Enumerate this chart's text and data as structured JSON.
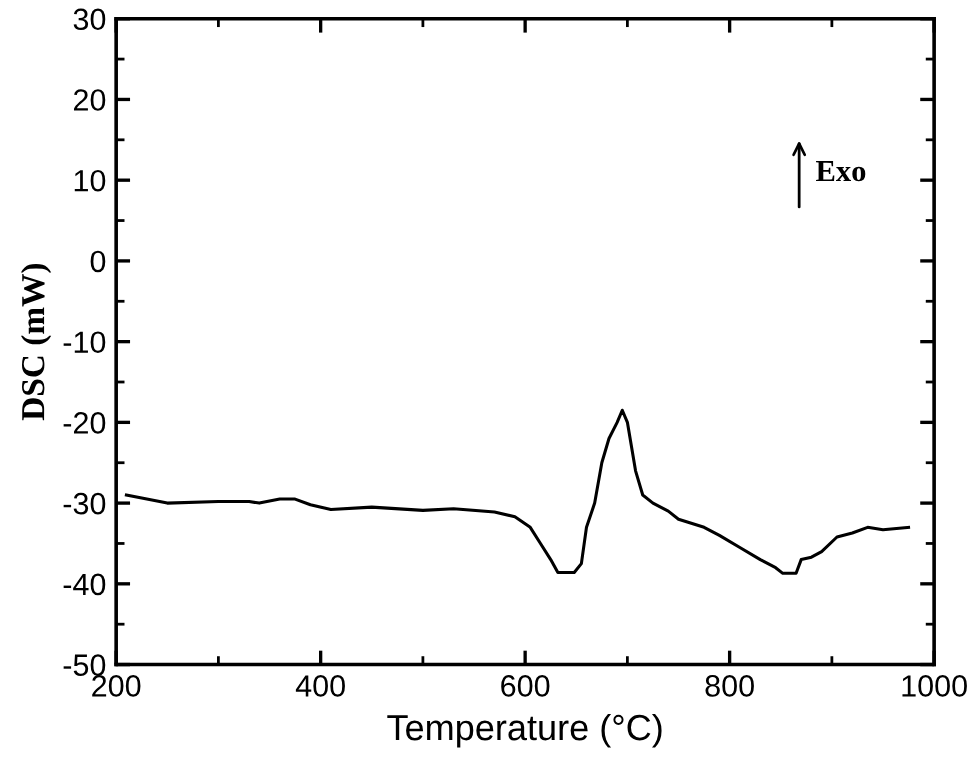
{
  "chart_data": {
    "type": "line",
    "xlabel": "Temperature (°C)",
    "ylabel": "DSC (mW)",
    "x": [
      210,
      230,
      250,
      300,
      330,
      340,
      360,
      375,
      390,
      410,
      450,
      500,
      530,
      570,
      590,
      605,
      615,
      625,
      632,
      648,
      655,
      660,
      668,
      675,
      682,
      690,
      695,
      700,
      708,
      715,
      725,
      740,
      750,
      775,
      790,
      810,
      830,
      845,
      852,
      865,
      870,
      880,
      890,
      905,
      920,
      935,
      950,
      975
    ],
    "series": [
      {
        "color": "#000000",
        "values": [
          -29,
          -29.5,
          -30,
          -29.8,
          -29.8,
          -30,
          -29.5,
          -29.5,
          -30.2,
          -30.8,
          -30.5,
          -30.9,
          -30.7,
          -31.1,
          -31.7,
          -33,
          -35,
          -37,
          -38.6,
          -38.6,
          -37.5,
          -33,
          -30,
          -25,
          -22,
          -20,
          -18.5,
          -20,
          -26,
          -29,
          -30,
          -31,
          -32,
          -33,
          -34,
          -35.5,
          -37,
          -38,
          -38.7,
          -38.7,
          -37,
          -36.7,
          -36,
          -34.2,
          -33.7,
          -33,
          -33.3,
          -33
        ]
      }
    ],
    "xlim": [
      200,
      1000
    ],
    "ylim": [
      -50,
      30
    ],
    "xticks": [
      200,
      400,
      600,
      800,
      1000
    ],
    "yticks": [
      -50,
      -40,
      -30,
      -20,
      -10,
      0,
      10,
      20,
      30
    ],
    "annotations": [
      "Exo"
    ],
    "grid": false,
    "legend": false,
    "marker": "none",
    "line_style": "solid"
  }
}
